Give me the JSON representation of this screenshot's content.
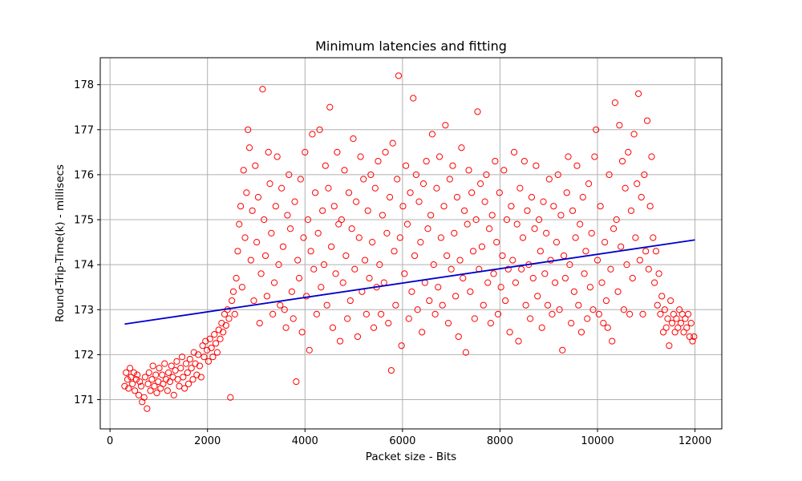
{
  "chart_data": {
    "type": "scatter",
    "title": "Minimum latencies and fitting",
    "xlabel": "Packet size - Bits",
    "ylabel": "Round-Trip-Time(k) - millisecs",
    "xlim": [
      -200,
      12550
    ],
    "ylim": [
      170.35,
      178.6
    ],
    "x_ticks": [
      0,
      2000,
      4000,
      6000,
      8000,
      10000,
      12000
    ],
    "y_ticks": [
      171,
      172,
      173,
      174,
      175,
      176,
      177,
      178
    ],
    "grid": true,
    "colors": {
      "points": "#ff0000",
      "fit": "#0000cc",
      "grid": "#b0b0b0"
    },
    "fit_line": {
      "x": [
        300,
        12000
      ],
      "y": [
        172.68,
        174.55
      ]
    },
    "points": [
      [
        300,
        171.3
      ],
      [
        330,
        171.6
      ],
      [
        360,
        171.45
      ],
      [
        380,
        171.25
      ],
      [
        410,
        171.7
      ],
      [
        430,
        171.5
      ],
      [
        460,
        171.35
      ],
      [
        490,
        171.6
      ],
      [
        510,
        171.2
      ],
      [
        540,
        171.45
      ],
      [
        560,
        171.55
      ],
      [
        590,
        171.1
      ],
      [
        610,
        171.4
      ],
      [
        640,
        171.3
      ],
      [
        660,
        170.95
      ],
      [
        700,
        171.05
      ],
      [
        720,
        171.5
      ],
      [
        760,
        170.8
      ],
      [
        780,
        171.35
      ],
      [
        800,
        171.6
      ],
      [
        830,
        171.2
      ],
      [
        860,
        171.45
      ],
      [
        880,
        171.75
      ],
      [
        910,
        171.3
      ],
      [
        940,
        171.55
      ],
      [
        960,
        171.15
      ],
      [
        990,
        171.4
      ],
      [
        1010,
        171.7
      ],
      [
        1040,
        171.25
      ],
      [
        1070,
        171.55
      ],
      [
        1090,
        171.35
      ],
      [
        1120,
        171.8
      ],
      [
        1150,
        171.45
      ],
      [
        1180,
        171.2
      ],
      [
        1200,
        171.6
      ],
      [
        1230,
        171.4
      ],
      [
        1260,
        171.75
      ],
      [
        1290,
        171.5
      ],
      [
        1310,
        171.1
      ],
      [
        1340,
        171.65
      ],
      [
        1370,
        171.85
      ],
      [
        1390,
        171.45
      ],
      [
        1420,
        171.3
      ],
      [
        1450,
        171.7
      ],
      [
        1480,
        171.95
      ],
      [
        1500,
        171.5
      ],
      [
        1530,
        171.25
      ],
      [
        1560,
        171.8
      ],
      [
        1590,
        171.6
      ],
      [
        1610,
        171.35
      ],
      [
        1640,
        171.9
      ],
      [
        1670,
        171.7
      ],
      [
        1700,
        171.45
      ],
      [
        1720,
        172.05
      ],
      [
        1750,
        171.8
      ],
      [
        1780,
        171.55
      ],
      [
        1810,
        172.0
      ],
      [
        1840,
        171.75
      ],
      [
        1870,
        171.5
      ],
      [
        1900,
        172.2
      ],
      [
        1930,
        171.95
      ],
      [
        1960,
        172.3
      ],
      [
        1990,
        172.1
      ],
      [
        2020,
        171.85
      ],
      [
        2050,
        172.35
      ],
      [
        2080,
        172.15
      ],
      [
        2110,
        171.95
      ],
      [
        2140,
        172.45
      ],
      [
        2170,
        172.25
      ],
      [
        2200,
        172.05
      ],
      [
        2230,
        172.55
      ],
      [
        2260,
        172.35
      ],
      [
        2290,
        172.7
      ],
      [
        2320,
        172.5
      ],
      [
        2350,
        172.9
      ],
      [
        2380,
        172.65
      ],
      [
        2410,
        173.0
      ],
      [
        2440,
        172.8
      ],
      [
        2470,
        171.05
      ],
      [
        2500,
        173.2
      ],
      [
        2530,
        173.4
      ],
      [
        2560,
        172.9
      ],
      [
        2590,
        173.7
      ],
      [
        2620,
        174.3
      ],
      [
        2650,
        174.9
      ],
      [
        2680,
        175.3
      ],
      [
        2710,
        173.5
      ],
      [
        2740,
        176.1
      ],
      [
        2770,
        174.6
      ],
      [
        2800,
        175.6
      ],
      [
        2830,
        177.0
      ],
      [
        2860,
        176.6
      ],
      [
        2890,
        174.1
      ],
      [
        2920,
        175.2
      ],
      [
        2950,
        173.2
      ],
      [
        2980,
        176.2
      ],
      [
        3010,
        174.5
      ],
      [
        3040,
        175.5
      ],
      [
        3070,
        172.7
      ],
      [
        3100,
        173.8
      ],
      [
        3130,
        177.9
      ],
      [
        3160,
        175.0
      ],
      [
        3190,
        174.2
      ],
      [
        3220,
        173.3
      ],
      [
        3250,
        176.5
      ],
      [
        3280,
        175.8
      ],
      [
        3310,
        174.7
      ],
      [
        3340,
        172.9
      ],
      [
        3370,
        173.6
      ],
      [
        3400,
        175.3
      ],
      [
        3430,
        176.4
      ],
      [
        3460,
        174.0
      ],
      [
        3490,
        173.1
      ],
      [
        3520,
        175.7
      ],
      [
        3550,
        174.4
      ],
      [
        3580,
        173.0
      ],
      [
        3610,
        172.6
      ],
      [
        3640,
        175.1
      ],
      [
        3670,
        176.0
      ],
      [
        3700,
        174.8
      ],
      [
        3730,
        173.4
      ],
      [
        3760,
        172.8
      ],
      [
        3790,
        175.4
      ],
      [
        3820,
        171.4
      ],
      [
        3850,
        174.1
      ],
      [
        3880,
        173.7
      ],
      [
        3910,
        175.9
      ],
      [
        3940,
        172.5
      ],
      [
        3970,
        174.6
      ],
      [
        4000,
        176.5
      ],
      [
        4030,
        173.3
      ],
      [
        4060,
        175.0
      ],
      [
        4090,
        172.1
      ],
      [
        4120,
        174.3
      ],
      [
        4150,
        176.9
      ],
      [
        4180,
        173.9
      ],
      [
        4210,
        175.6
      ],
      [
        4240,
        172.9
      ],
      [
        4270,
        174.7
      ],
      [
        4300,
        177.0
      ],
      [
        4330,
        173.5
      ],
      [
        4360,
        175.2
      ],
      [
        4390,
        174.0
      ],
      [
        4420,
        176.2
      ],
      [
        4450,
        173.1
      ],
      [
        4480,
        175.7
      ],
      [
        4510,
        177.5
      ],
      [
        4540,
        174.4
      ],
      [
        4570,
        172.6
      ],
      [
        4600,
        175.3
      ],
      [
        4630,
        173.8
      ],
      [
        4660,
        176.5
      ],
      [
        4690,
        174.9
      ],
      [
        4720,
        172.3
      ],
      [
        4750,
        175.0
      ],
      [
        4780,
        173.6
      ],
      [
        4810,
        176.1
      ],
      [
        4840,
        174.2
      ],
      [
        4870,
        172.8
      ],
      [
        4900,
        175.6
      ],
      [
        4930,
        173.2
      ],
      [
        4960,
        174.8
      ],
      [
        4990,
        176.8
      ],
      [
        5020,
        173.9
      ],
      [
        5050,
        175.4
      ],
      [
        5080,
        172.4
      ],
      [
        5110,
        174.6
      ],
      [
        5140,
        176.4
      ],
      [
        5170,
        173.4
      ],
      [
        5200,
        175.9
      ],
      [
        5230,
        174.1
      ],
      [
        5260,
        172.9
      ],
      [
        5290,
        175.2
      ],
      [
        5320,
        173.7
      ],
      [
        5350,
        176.0
      ],
      [
        5380,
        174.5
      ],
      [
        5410,
        172.6
      ],
      [
        5440,
        175.7
      ],
      [
        5470,
        173.5
      ],
      [
        5500,
        176.3
      ],
      [
        5530,
        174.0
      ],
      [
        5560,
        172.9
      ],
      [
        5590,
        175.1
      ],
      [
        5620,
        173.6
      ],
      [
        5650,
        176.5
      ],
      [
        5680,
        174.7
      ],
      [
        5710,
        172.7
      ],
      [
        5740,
        175.5
      ],
      [
        5770,
        171.65
      ],
      [
        5800,
        176.7
      ],
      [
        5830,
        174.3
      ],
      [
        5860,
        173.1
      ],
      [
        5890,
        175.9
      ],
      [
        5920,
        178.2
      ],
      [
        5950,
        174.6
      ],
      [
        5980,
        172.2
      ],
      [
        6010,
        175.3
      ],
      [
        6040,
        173.8
      ],
      [
        6070,
        176.2
      ],
      [
        6100,
        174.9
      ],
      [
        6130,
        172.8
      ],
      [
        6160,
        175.6
      ],
      [
        6190,
        173.4
      ],
      [
        6220,
        177.7
      ],
      [
        6250,
        174.2
      ],
      [
        6280,
        176.0
      ],
      [
        6310,
        173.0
      ],
      [
        6340,
        175.4
      ],
      [
        6370,
        174.5
      ],
      [
        6400,
        172.5
      ],
      [
        6430,
        175.8
      ],
      [
        6460,
        173.6
      ],
      [
        6490,
        176.3
      ],
      [
        6520,
        174.8
      ],
      [
        6550,
        173.2
      ],
      [
        6580,
        175.1
      ],
      [
        6610,
        176.9
      ],
      [
        6640,
        174.0
      ],
      [
        6670,
        172.9
      ],
      [
        6700,
        175.7
      ],
      [
        6730,
        173.5
      ],
      [
        6760,
        176.4
      ],
      [
        6790,
        174.6
      ],
      [
        6820,
        173.1
      ],
      [
        6850,
        175.3
      ],
      [
        6880,
        177.1
      ],
      [
        6910,
        174.2
      ],
      [
        6940,
        172.7
      ],
      [
        6970,
        175.9
      ],
      [
        7000,
        173.9
      ],
      [
        7030,
        176.2
      ],
      [
        7060,
        174.7
      ],
      [
        7090,
        173.3
      ],
      [
        7120,
        175.5
      ],
      [
        7150,
        172.4
      ],
      [
        7180,
        174.1
      ],
      [
        7210,
        176.6
      ],
      [
        7240,
        173.7
      ],
      [
        7270,
        175.2
      ],
      [
        7300,
        172.05
      ],
      [
        7330,
        174.9
      ],
      [
        7360,
        176.1
      ],
      [
        7390,
        173.4
      ],
      [
        7420,
        175.6
      ],
      [
        7450,
        174.3
      ],
      [
        7480,
        172.8
      ],
      [
        7510,
        175.0
      ],
      [
        7540,
        177.4
      ],
      [
        7570,
        173.9
      ],
      [
        7600,
        175.8
      ],
      [
        7630,
        174.4
      ],
      [
        7660,
        173.1
      ],
      [
        7690,
        175.4
      ],
      [
        7720,
        176.0
      ],
      [
        7750,
        173.6
      ],
      [
        7780,
        174.8
      ],
      [
        7810,
        172.7
      ],
      [
        7840,
        175.1
      ],
      [
        7870,
        173.8
      ],
      [
        7900,
        176.3
      ],
      [
        7930,
        174.5
      ],
      [
        7960,
        172.9
      ],
      [
        7990,
        175.6
      ],
      [
        8020,
        173.5
      ],
      [
        8050,
        174.2
      ],
      [
        8080,
        176.1
      ],
      [
        8110,
        173.2
      ],
      [
        8140,
        175.0
      ],
      [
        8170,
        173.9
      ],
      [
        8200,
        172.5
      ],
      [
        8230,
        175.3
      ],
      [
        8260,
        174.1
      ],
      [
        8290,
        176.5
      ],
      [
        8320,
        173.6
      ],
      [
        8350,
        174.9
      ],
      [
        8380,
        172.3
      ],
      [
        8410,
        175.7
      ],
      [
        8440,
        173.9
      ],
      [
        8470,
        174.6
      ],
      [
        8500,
        176.3
      ],
      [
        8530,
        173.1
      ],
      [
        8560,
        175.2
      ],
      [
        8590,
        174.0
      ],
      [
        8620,
        172.8
      ],
      [
        8650,
        175.5
      ],
      [
        8680,
        173.7
      ],
      [
        8710,
        174.8
      ],
      [
        8740,
        176.2
      ],
      [
        8770,
        173.3
      ],
      [
        8800,
        175.0
      ],
      [
        8830,
        174.3
      ],
      [
        8860,
        172.6
      ],
      [
        8890,
        175.4
      ],
      [
        8920,
        173.8
      ],
      [
        8950,
        174.7
      ],
      [
        8980,
        173.1
      ],
      [
        9010,
        175.9
      ],
      [
        9040,
        174.1
      ],
      [
        9070,
        172.9
      ],
      [
        9100,
        175.3
      ],
      [
        9130,
        173.6
      ],
      [
        9160,
        174.5
      ],
      [
        9190,
        176.0
      ],
      [
        9220,
        173.0
      ],
      [
        9250,
        175.1
      ],
      [
        9280,
        172.1
      ],
      [
        9310,
        174.2
      ],
      [
        9340,
        173.7
      ],
      [
        9370,
        175.6
      ],
      [
        9400,
        176.4
      ],
      [
        9430,
        174.0
      ],
      [
        9460,
        172.7
      ],
      [
        9490,
        175.2
      ],
      [
        9520,
        173.4
      ],
      [
        9550,
        174.6
      ],
      [
        9580,
        176.2
      ],
      [
        9610,
        173.1
      ],
      [
        9640,
        174.9
      ],
      [
        9670,
        172.5
      ],
      [
        9700,
        175.5
      ],
      [
        9730,
        173.8
      ],
      [
        9760,
        174.3
      ],
      [
        9790,
        172.8
      ],
      [
        9820,
        175.8
      ],
      [
        9850,
        173.5
      ],
      [
        9880,
        174.7
      ],
      [
        9910,
        173.0
      ],
      [
        9940,
        176.4
      ],
      [
        9970,
        177.0
      ],
      [
        10000,
        174.1
      ],
      [
        10030,
        172.9
      ],
      [
        10060,
        175.3
      ],
      [
        10090,
        173.6
      ],
      [
        10120,
        172.7
      ],
      [
        10150,
        174.5
      ],
      [
        10180,
        173.2
      ],
      [
        10210,
        172.6
      ],
      [
        10240,
        176.0
      ],
      [
        10270,
        173.9
      ],
      [
        10300,
        172.3
      ],
      [
        10330,
        174.8
      ],
      [
        10360,
        177.6
      ],
      [
        10390,
        175.0
      ],
      [
        10420,
        173.4
      ],
      [
        10450,
        177.1
      ],
      [
        10480,
        174.4
      ],
      [
        10510,
        176.3
      ],
      [
        10540,
        173.0
      ],
      [
        10570,
        175.7
      ],
      [
        10600,
        174.0
      ],
      [
        10630,
        176.5
      ],
      [
        10660,
        172.9
      ],
      [
        10690,
        175.2
      ],
      [
        10720,
        173.7
      ],
      [
        10750,
        176.9
      ],
      [
        10780,
        174.6
      ],
      [
        10810,
        175.8
      ],
      [
        10840,
        177.8
      ],
      [
        10870,
        174.1
      ],
      [
        10900,
        175.5
      ],
      [
        10930,
        172.9
      ],
      [
        10960,
        176.0
      ],
      [
        10990,
        174.3
      ],
      [
        11020,
        177.2
      ],
      [
        11050,
        173.9
      ],
      [
        11080,
        175.3
      ],
      [
        11110,
        176.4
      ],
      [
        11140,
        174.6
      ],
      [
        11170,
        173.6
      ],
      [
        11200,
        174.3
      ],
      [
        11230,
        173.1
      ],
      [
        11260,
        173.8
      ],
      [
        11290,
        172.9
      ],
      [
        11320,
        173.3
      ],
      [
        11350,
        172.5
      ],
      [
        11380,
        173.0
      ],
      [
        11410,
        172.6
      ],
      [
        11440,
        172.8
      ],
      [
        11470,
        172.2
      ],
      [
        11500,
        173.2
      ],
      [
        11530,
        172.7
      ],
      [
        11560,
        172.9
      ],
      [
        11590,
        172.5
      ],
      [
        11620,
        172.8
      ],
      [
        11650,
        172.6
      ],
      [
        11680,
        173.0
      ],
      [
        11710,
        172.7
      ],
      [
        11740,
        172.9
      ],
      [
        11770,
        172.5
      ],
      [
        11800,
        172.8
      ],
      [
        11830,
        172.6
      ],
      [
        11860,
        172.9
      ],
      [
        11890,
        172.4
      ],
      [
        11920,
        172.7
      ],
      [
        11950,
        172.3
      ],
      [
        11980,
        172.4
      ]
    ]
  }
}
